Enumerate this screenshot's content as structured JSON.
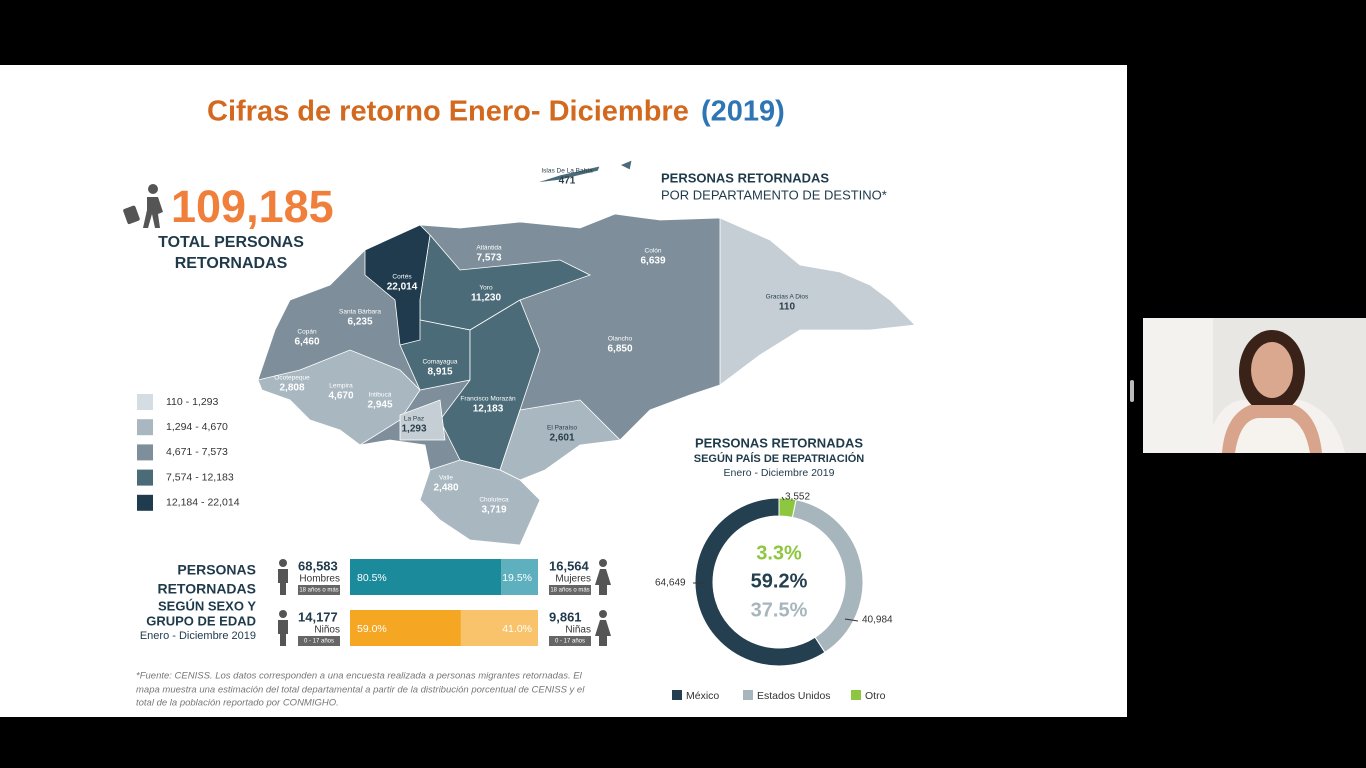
{
  "slide": {
    "title": "Cifras de retorno Enero- Diciembre",
    "title_year": "(2019)",
    "total": {
      "value": "109,185",
      "label_lines": [
        "TOTAL PERSONAS",
        "RETORNADAS"
      ]
    },
    "map": {
      "title": "PERSONAS RETORNADAS",
      "subtitle": "POR DEPARTAMENTO DE DESTINO*",
      "departments": [
        {
          "name": "Islas De La Bahía",
          "value": "471"
        },
        {
          "name": "Atlántida",
          "value": "7,573"
        },
        {
          "name": "Colón",
          "value": "6,639"
        },
        {
          "name": "Gracias A Dios",
          "value": "110"
        },
        {
          "name": "Cortés",
          "value": "22,014"
        },
        {
          "name": "Yoro",
          "value": "11,230"
        },
        {
          "name": "Santa Bárbara",
          "value": "6,235"
        },
        {
          "name": "Copán",
          "value": "6,460"
        },
        {
          "name": "Olancho",
          "value": "6,850"
        },
        {
          "name": "Comayagua",
          "value": "8,915"
        },
        {
          "name": "Ocotepeque",
          "value": "2,808"
        },
        {
          "name": "Lempira",
          "value": "4,670"
        },
        {
          "name": "Intibucá",
          "value": "2,945"
        },
        {
          "name": "Francisco Morazán",
          "value": "12,183"
        },
        {
          "name": "La Paz",
          "value": "1,293"
        },
        {
          "name": "El Paraíso",
          "value": "2,601"
        },
        {
          "name": "Valle",
          "value": "2,480"
        },
        {
          "name": "Choluteca",
          "value": "3,719"
        }
      ],
      "legend": [
        "110 - 1,293",
        "1,294 - 4,670",
        "4,671 - 7,573",
        "7,574 - 12,183",
        "12,184 - 22,014"
      ]
    },
    "sex_age": {
      "title_lines": [
        "PERSONAS",
        "RETORNADAS",
        "SEGÚN SEXO Y",
        "GRUPO DE EDAD"
      ],
      "period": "Enero - Diciembre 2019",
      "rows": [
        {
          "left": {
            "value": "68,583",
            "label": "Hombres",
            "age": "18 años o más"
          },
          "right": {
            "value": "16,564",
            "label": "Mujeres",
            "age": "18 años o más"
          },
          "shares": [
            80.5,
            19.5
          ],
          "share_labels": [
            "80.5%",
            "19.5%"
          ]
        },
        {
          "left": {
            "value": "14,177",
            "label": "Niños",
            "age": "0 - 17 años"
          },
          "right": {
            "value": "9,861",
            "label": "Niñas",
            "age": "0 - 17 años"
          },
          "shares": [
            59.0,
            41.0
          ],
          "share_labels": [
            "59.0%",
            "41.0%"
          ]
        }
      ]
    },
    "donut": {
      "title_lines": [
        "PERSONAS RETORNADAS",
        "SEGÚN PAÍS DE REPATRIACIÓN"
      ],
      "period": "Enero - Diciembre 2019",
      "series": [
        {
          "name": "México",
          "color": "#243f4f",
          "value": 64649,
          "value_label": "64,649",
          "percent": 59.2,
          "percent_label": "59.2%"
        },
        {
          "name": "Estados Unidos",
          "color": "#a7b5bd",
          "value": 40984,
          "value_label": "40,984",
          "percent": 37.5,
          "percent_label": "37.5%"
        },
        {
          "name": "Otro",
          "color": "#8dc63f",
          "value": 3552,
          "value_label": "3,552",
          "percent": 3.3,
          "percent_label": "3.3%"
        }
      ]
    },
    "footnote_lines": [
      "*Fuente: CENISS. Los datos corresponden a una encuesta realizada a personas migrantes retornadas. El",
      "mapa muestra una estimación del total departamental a partir de la distribución porcentual de CENISS y el",
      "total de la población reportado por CONMIGHO."
    ]
  }
}
